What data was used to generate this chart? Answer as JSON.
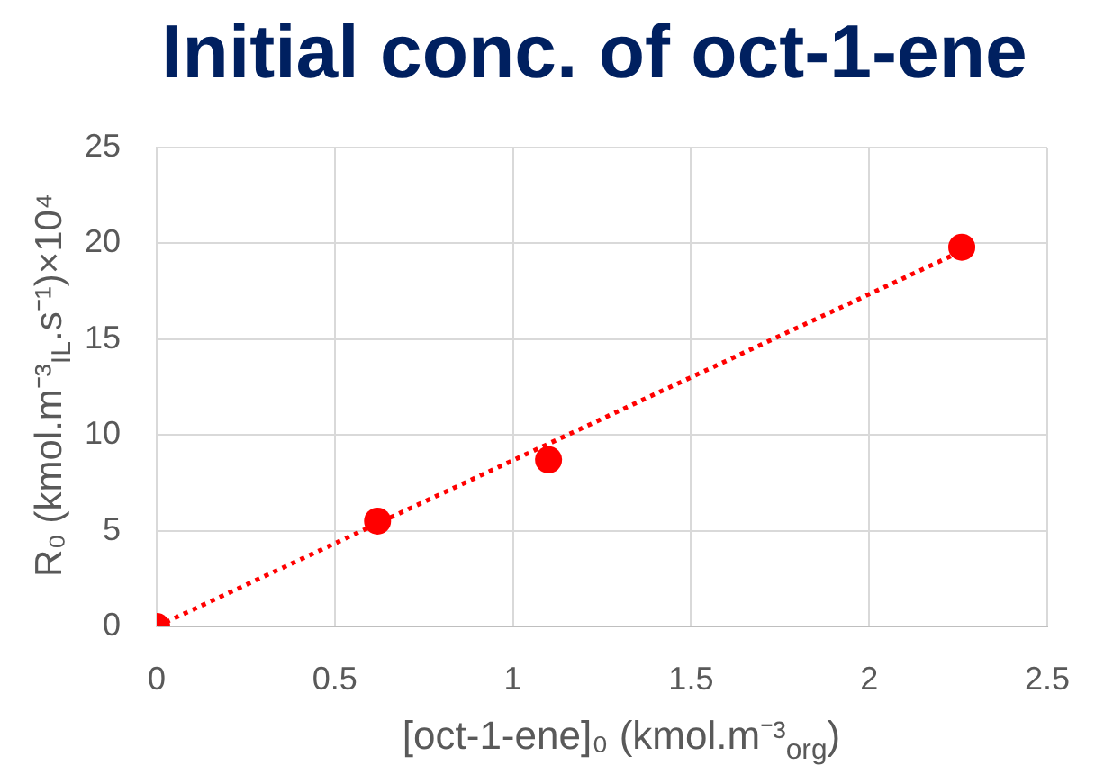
{
  "chart_data": {
    "type": "scatter",
    "title": "Initial conc. of oct-1-ene",
    "xlabel": "[oct-1-ene]₀ (kmol.m⁻³$_{org}$)",
    "ylabel": "R₀ (kmol.m⁻³$_{IL}$.s⁻¹)×10⁴",
    "x": [
      0,
      0.62,
      1.1,
      2.26
    ],
    "series": [
      {
        "type": "scatter",
        "color": "#ff0000",
        "marker": "circle",
        "values": [
          0,
          5.5,
          8.7,
          19.8
        ]
      },
      {
        "type": "line",
        "x": [
          0,
          2.26
        ],
        "values": [
          0,
          19.6
        ],
        "color": "#ff0000",
        "line_style": "dotted",
        "marker": "none"
      }
    ],
    "xlim": [
      0,
      2.5
    ],
    "xticks": [
      0,
      0.5,
      1,
      1.5,
      2,
      2.5
    ],
    "ylim": [
      0,
      25
    ],
    "yticks": [
      0,
      5,
      10,
      15,
      20,
      25
    ],
    "grid": true
  }
}
